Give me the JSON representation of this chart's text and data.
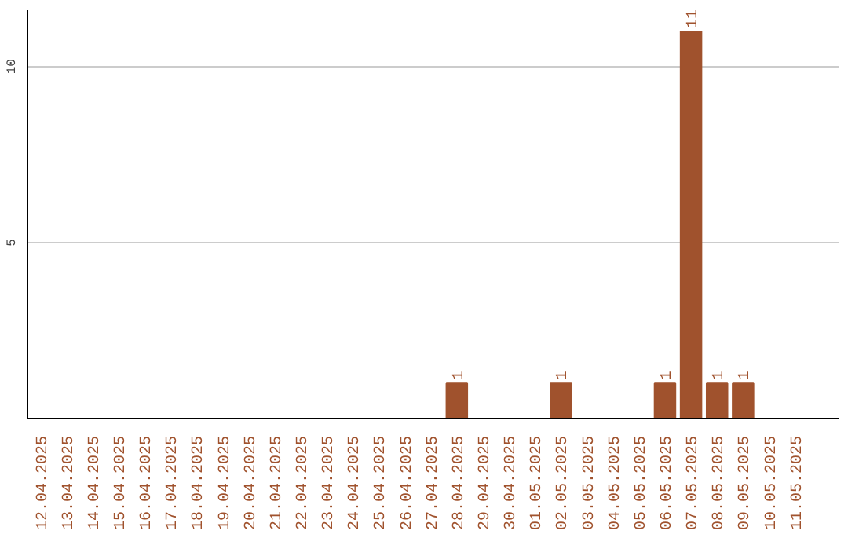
{
  "chart_data": {
    "type": "bar",
    "categories": [
      "12.04.2025",
      "13.04.2025",
      "14.04.2025",
      "15.04.2025",
      "16.04.2025",
      "17.04.2025",
      "18.04.2025",
      "19.04.2025",
      "20.04.2025",
      "21.04.2025",
      "22.04.2025",
      "23.04.2025",
      "24.04.2025",
      "25.04.2025",
      "26.04.2025",
      "27.04.2025",
      "28.04.2025",
      "29.04.2025",
      "30.04.2025",
      "01.05.2025",
      "02.05.2025",
      "03.05.2025",
      "04.05.2025",
      "05.05.2025",
      "06.05.2025",
      "07.05.2025",
      "08.05.2025",
      "09.05.2025",
      "10.05.2025",
      "11.05.2025"
    ],
    "values": [
      0,
      0,
      0,
      0,
      0,
      0,
      0,
      0,
      0,
      0,
      0,
      0,
      0,
      0,
      0,
      0,
      1,
      0,
      0,
      0,
      1,
      0,
      0,
      0,
      1,
      11,
      1,
      1,
      0,
      0
    ],
    "value_labels": [
      null,
      null,
      null,
      null,
      null,
      null,
      null,
      null,
      null,
      null,
      null,
      null,
      null,
      null,
      null,
      null,
      "1",
      null,
      null,
      null,
      "1",
      null,
      null,
      null,
      "1",
      "11",
      "1",
      "1",
      null,
      null
    ],
    "color": "#a0522d",
    "ylim": [
      0,
      11.6
    ],
    "yticks": [
      5,
      10
    ],
    "grid": "y"
  }
}
